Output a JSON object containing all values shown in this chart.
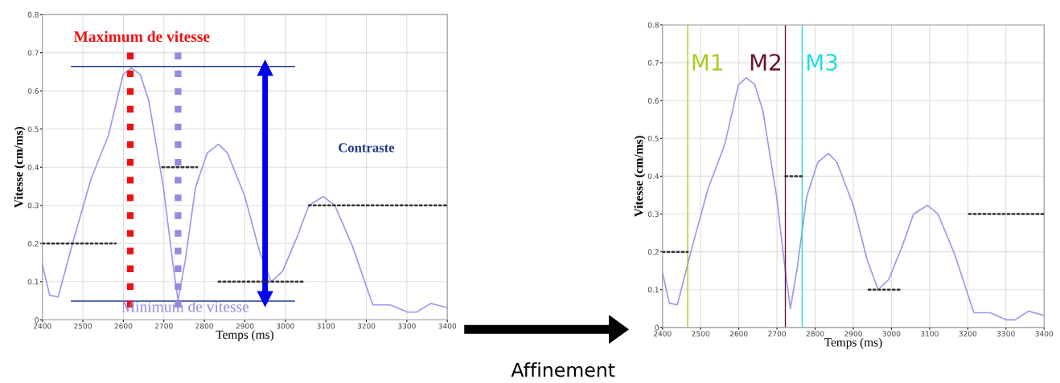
{
  "chart_data": [
    {
      "type": "line",
      "xlabel": "Temps (ms)",
      "ylabel": "Vitesse (cm/ms)",
      "xlim": [
        2400,
        3400
      ],
      "ylim": [
        0,
        0.8
      ],
      "xticks": [
        2400,
        2500,
        2600,
        2700,
        2800,
        2900,
        3000,
        3100,
        3200,
        3300,
        3400
      ],
      "yticks": [
        0,
        0.1,
        0.2,
        0.3,
        0.4,
        0.5,
        0.6,
        0.7,
        0.8
      ],
      "grid": true,
      "series": [
        {
          "color": "#9999ee",
          "x": [
            2400,
            2418,
            2439,
            2477,
            2520,
            2563,
            2599,
            2620,
            2642,
            2663,
            2699,
            2721,
            2735,
            2753,
            2778,
            2807,
            2835,
            2857,
            2900,
            2936,
            2965,
            2993,
            3029,
            3058,
            3094,
            3122,
            3165,
            3216,
            3259,
            3302,
            3324,
            3359,
            3400
          ],
          "values": [
            0.145,
            0.064,
            0.06,
            0.21,
            0.369,
            0.483,
            0.642,
            0.66,
            0.642,
            0.573,
            0.346,
            0.157,
            0.05,
            0.157,
            0.346,
            0.437,
            0.46,
            0.437,
            0.323,
            0.18,
            0.1,
            0.127,
            0.217,
            0.3,
            0.323,
            0.3,
            0.195,
            0.039,
            0.039,
            0.02,
            0.02,
            0.043,
            0.032
          ]
        },
        {
          "type": "line",
          "line_style": "dotted",
          "color": "#333333",
          "x": [
            2400,
            2581
          ],
          "values": [
            0.2,
            0.2
          ]
        },
        {
          "type": "line",
          "line_style": "dotted",
          "color": "#333333",
          "x": [
            2696,
            2782
          ],
          "values": [
            0.4,
            0.4
          ]
        },
        {
          "type": "line",
          "line_style": "dotted",
          "color": "#333333",
          "x": [
            2835,
            3043
          ],
          "values": [
            0.1,
            0.1
          ]
        },
        {
          "type": "line",
          "line_style": "dotted",
          "color": "#333333",
          "x": [
            3058,
            3400
          ],
          "values": [
            0.3,
            0.3
          ]
        },
        {
          "type": "line",
          "color": "#1f3a8a",
          "x": [
            2472,
            3022
          ],
          "values": [
            0.664,
            0.664
          ]
        },
        {
          "type": "line",
          "color": "#1f3a8a",
          "x": [
            2472,
            3022
          ],
          "values": [
            0.049,
            0.049
          ]
        },
        {
          "type": "line",
          "marker": "triangle",
          "color": "#0000ee",
          "x": [
            2950,
            2950
          ],
          "values": [
            0.66,
            0.055
          ]
        }
      ],
      "ref_lines": [
        {
          "axis": "x",
          "value": 2617,
          "label": "Maximum de vitesse",
          "color": "#ee1111",
          "line_style": "dotted"
        },
        {
          "axis": "x",
          "value": 2735,
          "label": "Minimum de vitesse",
          "color": "#9988dd",
          "line_style": "dotted"
        }
      ],
      "annotations": [
        "Contraste"
      ]
    },
    {
      "type": "other",
      "annotations": [
        "Affinement"
      ]
    },
    {
      "type": "line",
      "xlabel": "Temps (ms)",
      "ylabel": "Vitesse (cm/ms)",
      "xlim": [
        2400,
        3400
      ],
      "ylim": [
        0,
        0.8
      ],
      "xticks": [
        2400,
        2500,
        2600,
        2700,
        2800,
        2900,
        3000,
        3100,
        3200,
        3300,
        3400
      ],
      "yticks": [
        0,
        0.1,
        0.2,
        0.3,
        0.4,
        0.5,
        0.6,
        0.7,
        0.8
      ],
      "grid": true,
      "series": [
        {
          "color": "#9999ee",
          "x": [
            2400,
            2418,
            2439,
            2477,
            2520,
            2563,
            2599,
            2620,
            2642,
            2663,
            2699,
            2721,
            2735,
            2753,
            2778,
            2807,
            2835,
            2857,
            2900,
            2936,
            2965,
            2993,
            3029,
            3058,
            3094,
            3122,
            3165,
            3216,
            3259,
            3302,
            3324,
            3359,
            3400
          ],
          "values": [
            0.145,
            0.064,
            0.06,
            0.21,
            0.369,
            0.483,
            0.642,
            0.66,
            0.642,
            0.573,
            0.346,
            0.157,
            0.05,
            0.157,
            0.346,
            0.437,
            0.46,
            0.437,
            0.323,
            0.18,
            0.1,
            0.127,
            0.217,
            0.3,
            0.323,
            0.3,
            0.195,
            0.039,
            0.039,
            0.02,
            0.02,
            0.043,
            0.032
          ]
        },
        {
          "type": "line",
          "line_style": "dotted",
          "color": "#333333",
          "x": [
            2400,
            2466
          ],
          "values": [
            0.2,
            0.2
          ]
        },
        {
          "type": "line",
          "line_style": "dotted",
          "color": "#333333",
          "x": [
            2722,
            2766
          ],
          "values": [
            0.4,
            0.4
          ]
        },
        {
          "type": "line",
          "line_style": "dotted",
          "color": "#333333",
          "x": [
            2940,
            3028
          ],
          "values": [
            0.1,
            0.1
          ]
        },
        {
          "type": "line",
          "line_style": "dotted",
          "color": "#333333",
          "x": [
            3203,
            3400
          ],
          "values": [
            0.3,
            0.3
          ]
        }
      ],
      "ref_lines": [
        {
          "axis": "x",
          "value": 2466,
          "label": "M1",
          "color": "#aacc22"
        },
        {
          "axis": "x",
          "value": 2722,
          "label": "M2",
          "color": "#661133"
        },
        {
          "axis": "x",
          "value": 2766,
          "label": "M3",
          "color": "#22dddd"
        }
      ]
    }
  ]
}
